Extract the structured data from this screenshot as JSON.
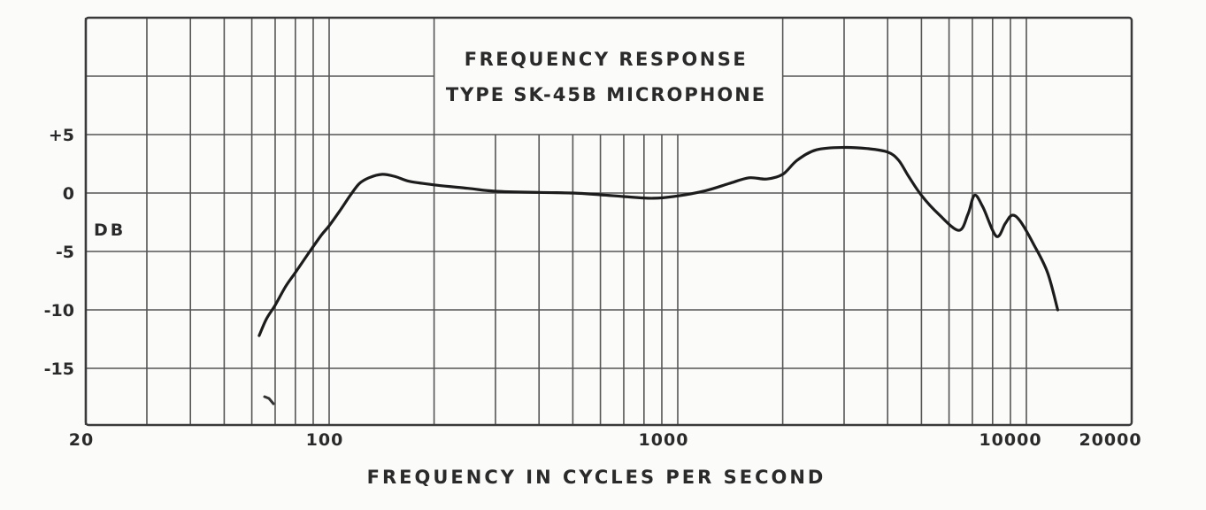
{
  "chart_data": {
    "type": "line",
    "title": "FREQUENCY RESPONSE",
    "subtitle": "TYPE SK-45B MICROPHONE",
    "xlabel": "FREQUENCY IN CYCLES PER SECOND",
    "ylabel": "DB",
    "x_scale": "log",
    "xlim": [
      20,
      20000
    ],
    "ylim": [
      -20,
      15
    ],
    "grid": true,
    "x_tick_labels": [
      {
        "value": 20,
        "label": "20"
      },
      {
        "value": 100,
        "label": "100"
      },
      {
        "value": 1000,
        "label": "1000"
      },
      {
        "value": 10000,
        "label": "10000"
      },
      {
        "value": 20000,
        "label": "20000"
      }
    ],
    "y_tick_labels": [
      {
        "value": 5,
        "label": "+5"
      },
      {
        "value": 0,
        "label": "0"
      },
      {
        "value": -5,
        "label": "-5"
      },
      {
        "value": -10,
        "label": "-10"
      },
      {
        "value": -15,
        "label": "-15"
      }
    ],
    "x_gridlines": [
      20,
      30,
      40,
      50,
      60,
      70,
      80,
      90,
      100,
      200,
      300,
      400,
      500,
      600,
      700,
      800,
      900,
      1000,
      2000,
      3000,
      4000,
      5000,
      6000,
      7000,
      8000,
      9000,
      10000
    ],
    "y_gridlines": [
      10,
      5,
      0,
      -5,
      -10,
      -15
    ],
    "series": [
      {
        "name": "SK-45B response",
        "x": [
          63,
          66,
          70,
          75,
          80,
          88,
          95,
          100,
          108,
          115,
          122,
          130,
          142,
          155,
          170,
          200,
          250,
          300,
          400,
          500,
          600,
          700,
          850,
          1000,
          1200,
          1400,
          1600,
          1800,
          2000,
          2200,
          2500,
          3000,
          3500,
          4000,
          4300,
          4600,
          5000,
          5600,
          6400,
          6800,
          7100,
          7500,
          8200,
          8700,
          9100,
          9600,
          10500,
          11500,
          12300
        ],
        "values": [
          -12.2,
          -10.8,
          -9.6,
          -8.0,
          -6.8,
          -5.0,
          -3.6,
          -2.8,
          -1.4,
          -0.2,
          0.8,
          1.3,
          1.6,
          1.4,
          1.0,
          0.7,
          0.4,
          0.15,
          0.05,
          0.0,
          -0.15,
          -0.3,
          -0.45,
          -0.25,
          0.2,
          0.8,
          1.3,
          1.2,
          1.6,
          2.8,
          3.7,
          3.9,
          3.8,
          3.5,
          2.8,
          1.4,
          -0.2,
          -1.8,
          -3.2,
          -1.8,
          -0.2,
          -1.2,
          -3.7,
          -2.6,
          -1.9,
          -2.4,
          -4.4,
          -6.8,
          -10.0
        ]
      }
    ]
  }
}
